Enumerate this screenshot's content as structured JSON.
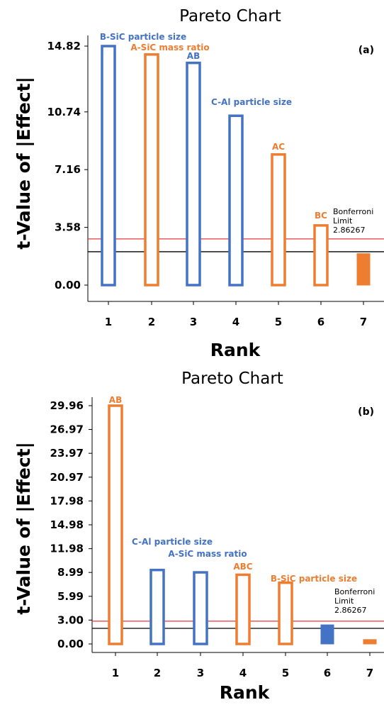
{
  "chart_data": [
    {
      "type": "bar",
      "panel": "(a)",
      "title": "Pareto Chart",
      "xlabel": "Rank",
      "ylabel": "t-Value of |Effect|",
      "categories": [
        "1",
        "2",
        "3",
        "4",
        "5",
        "6",
        "7"
      ],
      "yticks": [
        "0.00",
        "3.58",
        "7.16",
        "10.74",
        "14.82"
      ],
      "ylim": [
        0,
        15.5
      ],
      "values": [
        14.82,
        14.3,
        13.78,
        10.5,
        8.1,
        3.7,
        1.95
      ],
      "labels": [
        "B-SiC particle size",
        "A-SiC mass ratio",
        "AB",
        "C-Al particle size",
        "AC",
        "BC",
        ""
      ],
      "label_colors": [
        "#4472c4",
        "#ed7d31",
        "#4472c4",
        "#4472c4",
        "#ed7d31",
        "#ed7d31",
        "#ed7d31"
      ],
      "bar_colors": [
        "#4472c4",
        "#ed7d31",
        "#4472c4",
        "#4472c4",
        "#ed7d31",
        "#ed7d31",
        "#ed7d31"
      ],
      "bar_filled": [
        false,
        false,
        false,
        false,
        false,
        false,
        true
      ],
      "black_line": 2.07,
      "limit_value": 2.86267,
      "limit_label": [
        "Bonferroni",
        "Limit",
        "2.86267"
      ],
      "colors": {
        "positive": "#4472c4",
        "negative": "#ed7d31",
        "limit_line": "#e8373a",
        "reference_line": "#000000"
      }
    },
    {
      "type": "bar",
      "panel": "(b)",
      "title": "Pareto Chart",
      "xlabel": "Rank",
      "ylabel": "t-Value of |Effect|",
      "categories": [
        "1",
        "2",
        "3",
        "4",
        "5",
        "6",
        "7"
      ],
      "yticks": [
        "0.00",
        "3.00",
        "5.99",
        "8.99",
        "11.98",
        "14.98",
        "17.98",
        "20.97",
        "23.97",
        "26.97",
        "29.96"
      ],
      "ylim": [
        0,
        31
      ],
      "values": [
        29.96,
        9.3,
        9.0,
        8.7,
        7.7,
        2.4,
        0.55
      ],
      "labels": [
        "AB",
        "C-Al particle size",
        "A-SiC mass ratio",
        "ABC",
        "B-SiC particle size",
        "",
        ""
      ],
      "label_colors": [
        "#ed7d31",
        "#4472c4",
        "#4472c4",
        "#ed7d31",
        "#ed7d31",
        "#4472c4",
        "#ed7d31"
      ],
      "bar_colors": [
        "#ed7d31",
        "#4472c4",
        "#4472c4",
        "#ed7d31",
        "#ed7d31",
        "#4472c4",
        "#ed7d31"
      ],
      "bar_filled": [
        false,
        false,
        false,
        false,
        false,
        true,
        true
      ],
      "black_line": 1.96,
      "limit_value": 2.86267,
      "limit_label": [
        "Bonferroni",
        "Limit",
        "2.86267"
      ],
      "colors": {
        "positive": "#4472c4",
        "negative": "#ed7d31",
        "limit_line": "#e8373a",
        "reference_line": "#000000"
      }
    }
  ]
}
